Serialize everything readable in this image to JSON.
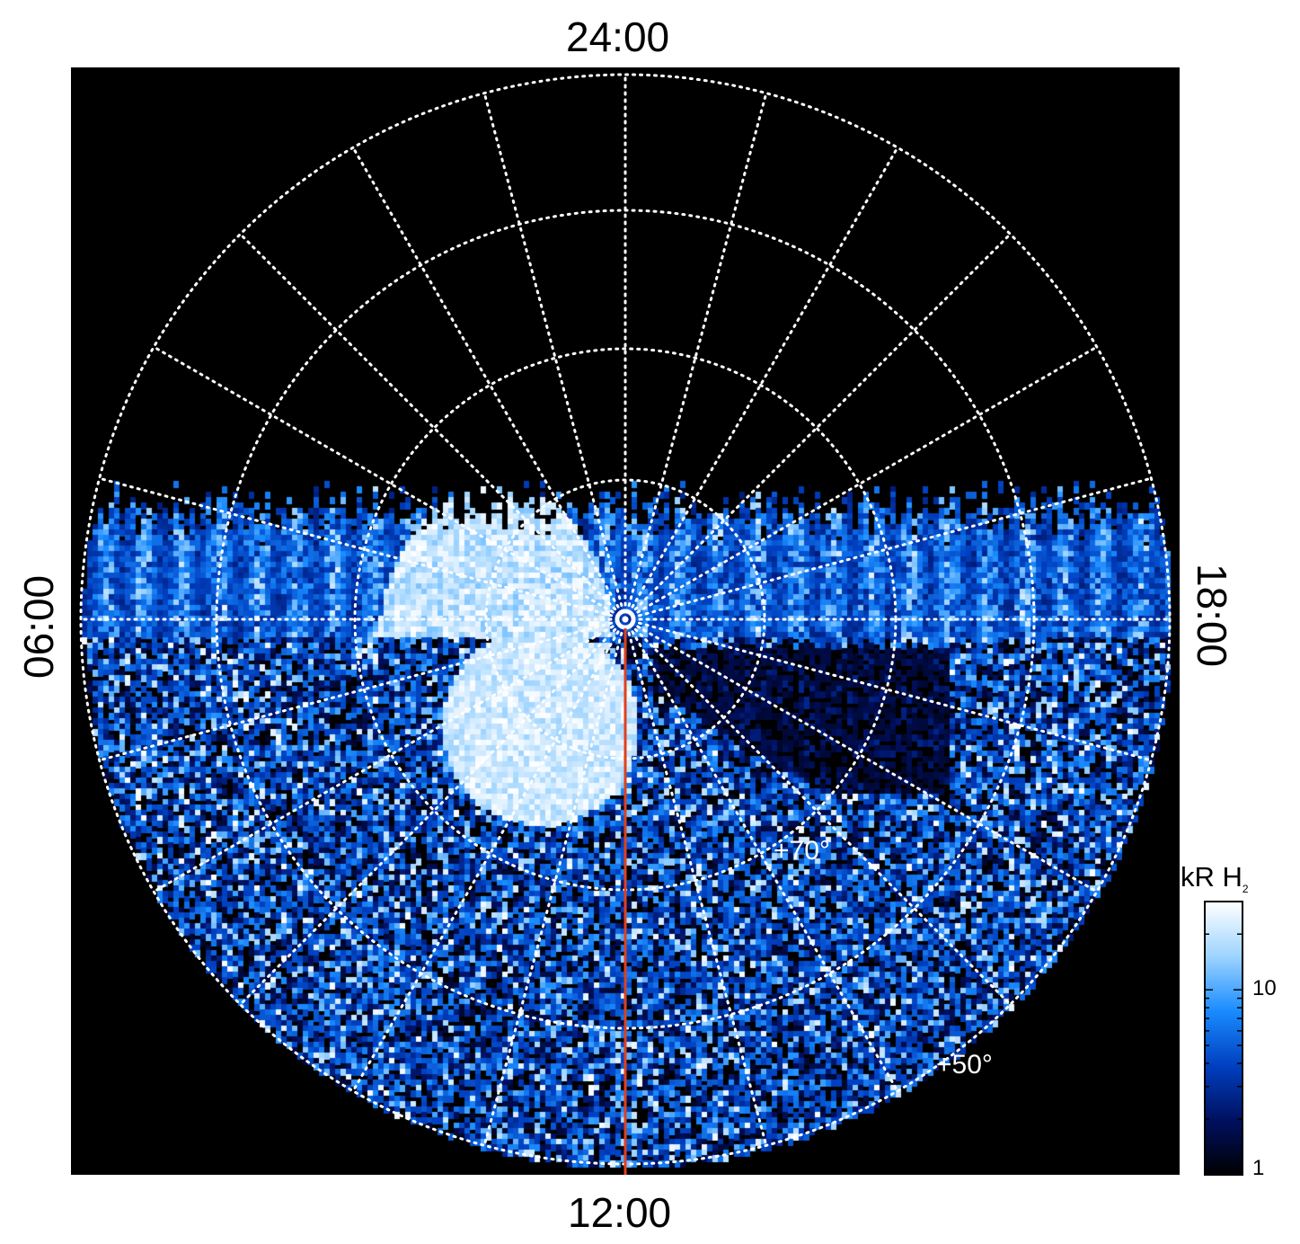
{
  "mlt_labels": {
    "top": "24:00",
    "bottom": "12:00",
    "left": "06:00",
    "right": "18:00"
  },
  "latitude_labels": {
    "inner": "+70°",
    "outer": "+50°"
  },
  "colorbar": {
    "title_main": "kR H",
    "title_sub": "2",
    "ticks": [
      "10",
      "1"
    ],
    "scale": "log",
    "range": [
      1,
      30
    ],
    "colors": [
      "#000000",
      "#001060",
      "#0040c0",
      "#1a8cff",
      "#9ed4ff",
      "#ffffff"
    ]
  },
  "colors": {
    "grid": "#ffffff",
    "meridian_line": "#e0401c",
    "background": "#000000"
  },
  "chart_data": {
    "type": "heatmap",
    "projection": "polar stereographic",
    "axis_labels_mlt": [
      "24:00",
      "06:00",
      "12:00",
      "18:00"
    ],
    "latitude_circles": [
      "+70°",
      "+50°"
    ],
    "grid": true,
    "colorbar_label": "kR H2",
    "colorbar_range": [
      1,
      30
    ],
    "colorbar_scale": "log",
    "colorbar_position": "bottom-right"
  }
}
